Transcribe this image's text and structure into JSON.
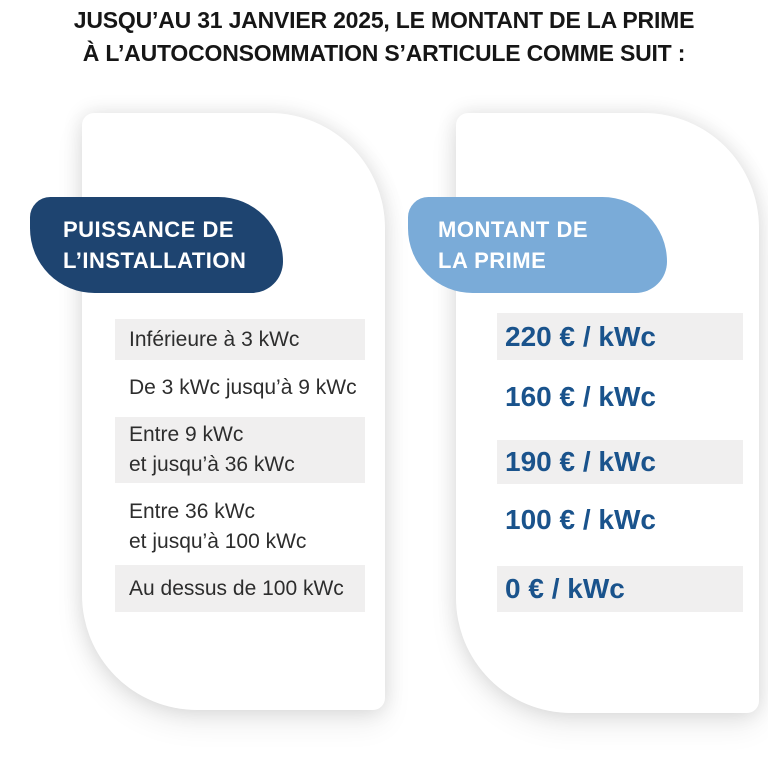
{
  "title": {
    "line1": "JUSQU’AU 31 JANVIER 2025, LE MONTANT DE LA PRIME",
    "line2": "À L’AUTOCONSOMMATION S’ARTICULE COMME SUIT :"
  },
  "colors": {
    "navy": "#1e4470",
    "light_blue": "#7aabd8",
    "value_blue": "#1a538c",
    "row_gray": "#f0efef",
    "title_black": "#161616",
    "body_text": "#2d2d2d"
  },
  "table": {
    "power_header": {
      "line1": "PUISSANCE DE",
      "line2": "L’INSTALLATION"
    },
    "amount_header": {
      "line1": "MONTANT DE",
      "line2": "LA PRIME"
    },
    "rows": [
      {
        "power_line1": "Inférieure à 3 kWc",
        "power_line2": "",
        "amount": "220 € / kWc",
        "striped": true
      },
      {
        "power_line1": "De 3 kWc jusqu’à 9 kWc",
        "power_line2": "",
        "amount": "160 € / kWc",
        "striped": false
      },
      {
        "power_line1": "Entre 9 kWc",
        "power_line2": "et jusqu’à 36 kWc",
        "amount": "190 € / kWc",
        "striped": true
      },
      {
        "power_line1": "Entre 36 kWc",
        "power_line2": "et jusqu’à 100 kWc",
        "amount": "100 € / kWc",
        "striped": false
      },
      {
        "power_line1": "Au dessus de 100 kWc",
        "power_line2": "",
        "amount": "0 € / kWc",
        "striped": true
      }
    ]
  },
  "chart_data": {
    "type": "table",
    "title": "JUSQU’AU 31 JANVIER 2025, LE MONTANT DE LA PRIME À L’AUTOCONSOMMATION S’ARTICULE COMME SUIT :",
    "columns": [
      "PUISSANCE DE L’INSTALLATION",
      "MONTANT DE LA PRIME"
    ],
    "rows": [
      [
        "Inférieure à 3 kWc",
        "220 € / kWc"
      ],
      [
        "De 3 kWc jusqu’à 9 kWc",
        "160 € / kWc"
      ],
      [
        "Entre 9 kWc et jusqu’à 36 kWc",
        "190 € / kWc"
      ],
      [
        "Entre 36 kWc et jusqu’à 100 kWc",
        "100 € / kWc"
      ],
      [
        "Au dessus de 100 kWc",
        "0 € / kWc"
      ]
    ],
    "values_eur_per_kwc": [
      220,
      160,
      190,
      100,
      0
    ]
  }
}
